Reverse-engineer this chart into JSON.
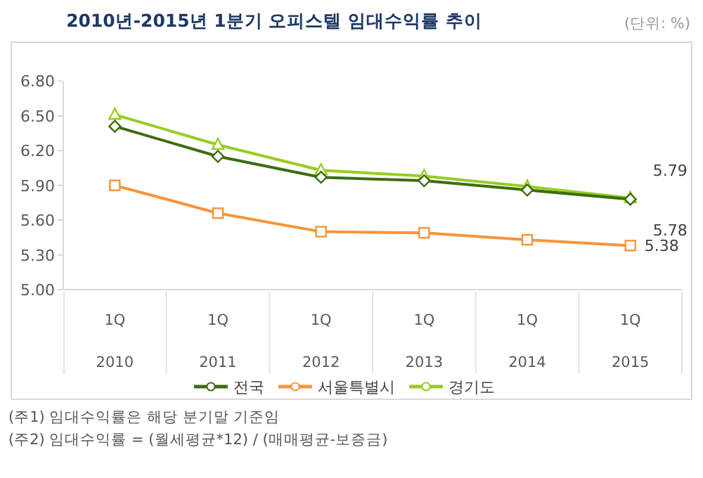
{
  "chart_data": {
    "type": "line",
    "title": "2010년-2015년 1분기 오피스텔 임대수익률 추이",
    "categories": [
      "1Q\n2010",
      "1Q\n2011",
      "1Q\n2012",
      "1Q\n2013",
      "1Q\n2014",
      "1Q\n2015"
    ],
    "series": [
      {
        "name": "전국",
        "color": "#3b6e10",
        "marker": "diamond",
        "values": [
          6.41,
          6.15,
          5.97,
          5.94,
          5.86,
          5.78
        ],
        "value_labels": [
          null,
          null,
          null,
          null,
          null,
          "5.78"
        ]
      },
      {
        "name": "서울특별시",
        "color": "#f7943a",
        "marker": "square",
        "values": [
          5.9,
          5.66,
          5.5,
          5.49,
          5.43,
          5.38
        ],
        "value_labels": [
          null,
          null,
          null,
          null,
          null,
          "5.38"
        ]
      },
      {
        "name": "경기도",
        "color": "#99cc22",
        "marker": "triangle",
        "values": [
          6.51,
          6.25,
          6.03,
          5.98,
          5.89,
          5.79
        ],
        "value_labels": [
          null,
          null,
          null,
          null,
          null,
          "5.79"
        ]
      }
    ],
    "ylim": [
      5.0,
      6.8
    ],
    "yticks": [
      {
        "value": 5.0,
        "label": "5.00"
      },
      {
        "value": 5.3,
        "label": "5.30"
      },
      {
        "value": 5.6,
        "label": "5.60"
      },
      {
        "value": 5.9,
        "label": "5.90"
      },
      {
        "value": 6.2,
        "label": "6.20"
      },
      {
        "value": 6.5,
        "label": "6.50"
      },
      {
        "value": 6.8,
        "label": "6.80"
      }
    ],
    "grid": false,
    "legend": "bottom",
    "line_style": "solid",
    "annotations": [
      "(단위: %)",
      "(주1) 임대수익률은 해당 분기말 기준임",
      "(주2) 임대수익률 = (월세평균*12) / (매매평균-보증금)"
    ]
  }
}
